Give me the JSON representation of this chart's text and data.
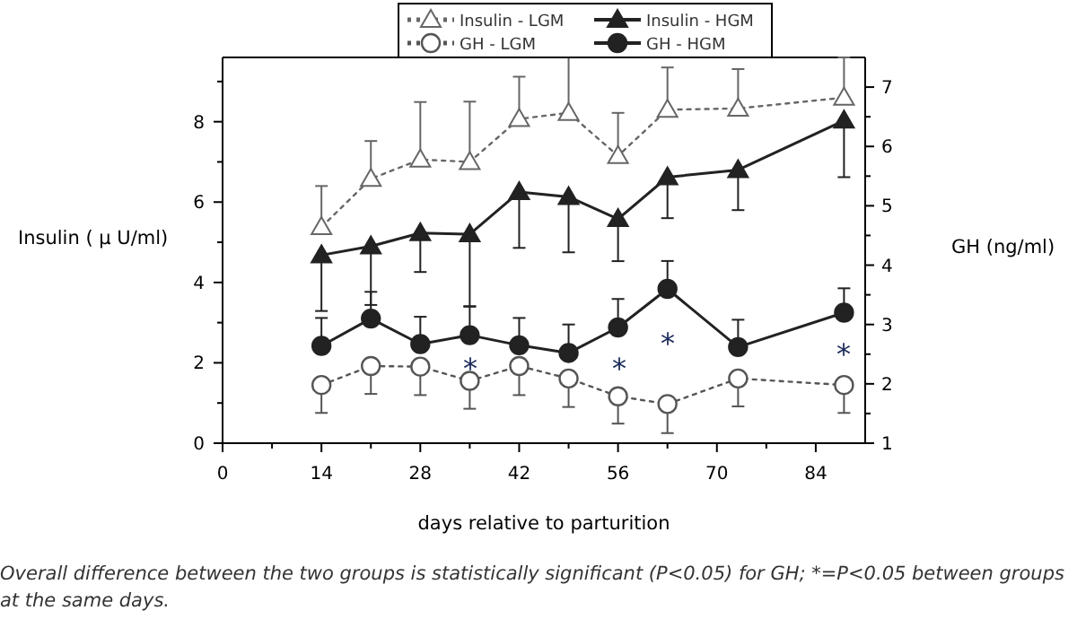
{
  "chart_data": {
    "type": "line",
    "xlabel": "days relative to parturition",
    "ylabel": "Insulin ( μ U/ml)",
    "y2label": "GH (ng/ml)",
    "xlim": [
      0,
      91
    ],
    "xticks": [
      0,
      {
        "value": 7,
        "label": null
      },
      14,
      {
        "value": 21,
        "label": null
      },
      28,
      {
        "value": 35,
        "label": null
      },
      42,
      {
        "value": 49,
        "label": null
      },
      56,
      {
        "value": 63,
        "label": null
      },
      70,
      {
        "value": 77,
        "label": null
      },
      84
    ],
    "ylim": [
      0,
      9.6
    ],
    "yticks": [
      0,
      {
        "value": 1,
        "label": null
      },
      2,
      {
        "value": 3,
        "label": null
      },
      4,
      {
        "value": 5,
        "label": null
      },
      6,
      {
        "value": 7,
        "label": null
      },
      8,
      {
        "value": 9,
        "label": null
      }
    ],
    "y2lim": [
      1,
      7.5
    ],
    "y2ticks": [
      1,
      {
        "value": 1.5,
        "label": null
      },
      2,
      {
        "value": 2.5,
        "label": null
      },
      3,
      {
        "value": 3.5,
        "label": null
      },
      4,
      {
        "value": 4.5,
        "label": null
      },
      5,
      {
        "value": 5.5,
        "label": null
      },
      6,
      {
        "value": 6.5,
        "label": null
      },
      7
    ],
    "x": [
      14,
      21,
      28,
      35,
      42,
      49,
      56,
      63,
      73,
      88
    ],
    "legend": "top",
    "grid": false,
    "series": [
      {
        "name": "Insulin - LGM",
        "color": "#666666",
        "marker": "triangle",
        "line_style": "dotted",
        "values": [
          5.38,
          6.58,
          7.06,
          7.0,
          8.07,
          8.22,
          7.15,
          8.3,
          8.33,
          8.6
        ],
        "errors": [
          [
            5.38,
            6.4
          ],
          [
            6.58,
            7.52
          ],
          [
            7.06,
            8.49
          ],
          [
            7.0,
            8.5
          ],
          [
            8.07,
            9.12
          ],
          [
            8.22,
            9.6
          ],
          [
            7.15,
            8.22
          ],
          [
            8.3,
            9.35
          ],
          [
            8.33,
            9.31
          ],
          [
            8.6,
            9.6
          ]
        ]
      },
      {
        "name": "Insulin - HGM",
        "color": "#222222",
        "marker": "triangle",
        "line_style": "solid",
        "values": [
          4.68,
          4.9,
          5.23,
          5.2,
          6.25,
          6.13,
          5.58,
          6.62,
          6.8,
          8.03
        ],
        "errors": [
          [
            3.29,
            4.68
          ],
          [
            3.44,
            4.9
          ],
          [
            4.26,
            5.23
          ],
          [
            3.41,
            5.2
          ],
          [
            4.86,
            6.25
          ],
          [
            4.75,
            6.13
          ],
          [
            4.53,
            5.58
          ],
          [
            5.6,
            6.62
          ],
          [
            5.8,
            6.8
          ],
          [
            6.62,
            8.03
          ]
        ]
      },
      {
        "name": "GH - LGM",
        "color": "#555555",
        "marker": "circle",
        "line_style": "dotted",
        "axis": "y2",
        "values": [
          1.98,
          2.3,
          2.29,
          2.05,
          2.3,
          2.09,
          1.79,
          1.66,
          2.09,
          1.98
        ],
        "errors": [
          [
            1.51,
            1.98
          ],
          [
            1.83,
            2.3
          ],
          [
            1.81,
            2.29
          ],
          [
            1.58,
            2.05
          ],
          [
            1.81,
            2.3
          ],
          [
            1.61,
            2.09
          ],
          [
            1.33,
            1.79
          ],
          [
            1.17,
            1.66
          ],
          [
            1.62,
            2.09
          ],
          [
            1.51,
            1.98
          ]
        ]
      },
      {
        "name": "GH - HGM",
        "color": "#222222",
        "marker": "circle",
        "line_style": "solid",
        "axis": "y2",
        "values": [
          2.64,
          3.1,
          2.67,
          2.82,
          2.65,
          2.52,
          2.95,
          3.6,
          2.62,
          3.2
        ],
        "errors": [
          [
            2.64,
            3.11
          ],
          [
            3.1,
            3.55
          ],
          [
            2.67,
            3.13
          ],
          [
            2.82,
            3.3
          ],
          [
            2.65,
            3.11
          ],
          [
            2.52,
            3.0
          ],
          [
            2.95,
            3.43
          ],
          [
            3.6,
            4.07
          ],
          [
            2.62,
            3.08
          ],
          [
            3.2,
            3.61
          ]
        ]
      }
    ],
    "annotations": [
      "*",
      "*",
      "*",
      "*",
      "Overall difference between the two groups is statistically significant (P<0.05) for GH; *=P<0.05 between groups at the same days."
    ]
  }
}
